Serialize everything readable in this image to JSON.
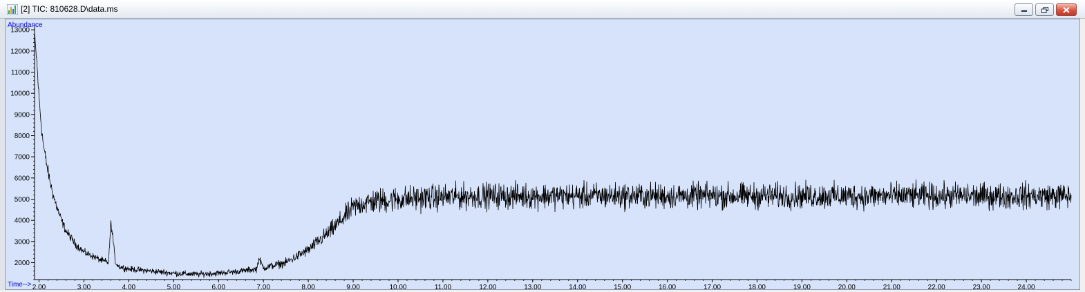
{
  "window": {
    "title": "[2] TIC: 810628.D\\data.ms",
    "icon": "chromatogram-icon",
    "controls": [
      "minimize-icon",
      "restore-icon",
      "close-icon"
    ]
  },
  "colors": {
    "plot_background": "#d6e3fb",
    "axis_label": "#0000cc",
    "trace": "#000000"
  },
  "chart_data": {
    "type": "line",
    "title": "",
    "ylabel": "Abundance",
    "xlabel": "Time-->",
    "xlim": [
      1.9,
      25.0
    ],
    "ylim": [
      1200,
      13300
    ],
    "x_ticks": [
      2.0,
      3.0,
      4.0,
      5.0,
      6.0,
      7.0,
      8.0,
      9.0,
      10.0,
      11.0,
      12.0,
      13.0,
      14.0,
      15.0,
      16.0,
      17.0,
      18.0,
      19.0,
      20.0,
      21.0,
      22.0,
      23.0,
      24.0
    ],
    "x_tick_labels": [
      "2.00",
      "3.00",
      "4.00",
      "5.00",
      "6.00",
      "7.00",
      "8.00",
      "9.00",
      "10.00",
      "11.00",
      "12.00",
      "13.00",
      "14.00",
      "15.00",
      "16.00",
      "17.00",
      "18.00",
      "19.00",
      "20.00",
      "21.00",
      "22.00",
      "23.00",
      "24.00"
    ],
    "y_ticks": [
      2000,
      3000,
      4000,
      5000,
      6000,
      7000,
      8000,
      9000,
      10000,
      11000,
      12000,
      13000
    ],
    "y_tick_labels": [
      "2000",
      "3000",
      "4000",
      "5000",
      "6000",
      "7000",
      "8000",
      "9000",
      "10000",
      "11000",
      "12000",
      "13000"
    ],
    "grid": false,
    "series": [
      {
        "x": [
          1.9,
          1.95,
          2.0,
          2.05,
          2.1,
          2.2,
          2.3,
          2.4,
          2.5,
          2.6,
          2.8,
          3.0,
          3.2,
          3.4,
          3.55,
          3.6,
          3.65,
          3.7,
          3.8,
          4.0,
          4.5,
          5.0,
          5.5,
          6.0,
          6.5,
          6.85,
          6.9,
          7.0,
          7.5,
          8.0,
          8.5,
          9.0,
          9.2,
          9.5,
          10.0,
          10.5,
          11.0,
          12.0,
          13.0,
          14.0,
          15.0,
          16.0,
          17.0,
          18.0,
          19.0,
          20.0,
          21.0,
          22.0,
          23.0,
          24.0,
          25.0
        ],
        "y": [
          12700,
          11500,
          9800,
          8500,
          7500,
          6300,
          5300,
          4600,
          4000,
          3500,
          2900,
          2500,
          2300,
          2100,
          2000,
          3900,
          3100,
          2000,
          1800,
          1700,
          1600,
          1500,
          1450,
          1500,
          1600,
          1700,
          2200,
          1750,
          2000,
          2600,
          3500,
          4600,
          4800,
          4900,
          5000,
          5050,
          5100,
          5150,
          5150,
          5150,
          5150,
          5150,
          5150,
          5150,
          5150,
          5150,
          5150,
          5150,
          5150,
          5150,
          5150
        ],
        "noise": [
          150,
          150,
          150,
          150,
          150,
          140,
          130,
          120,
          110,
          100,
          90,
          80,
          80,
          80,
          80,
          80,
          80,
          70,
          70,
          70,
          70,
          70,
          70,
          70,
          70,
          80,
          80,
          80,
          100,
          130,
          200,
          260,
          280,
          300,
          300,
          300,
          300,
          300,
          300,
          300,
          300,
          300,
          300,
          300,
          300,
          300,
          300,
          300,
          300,
          300,
          300
        ]
      }
    ]
  }
}
